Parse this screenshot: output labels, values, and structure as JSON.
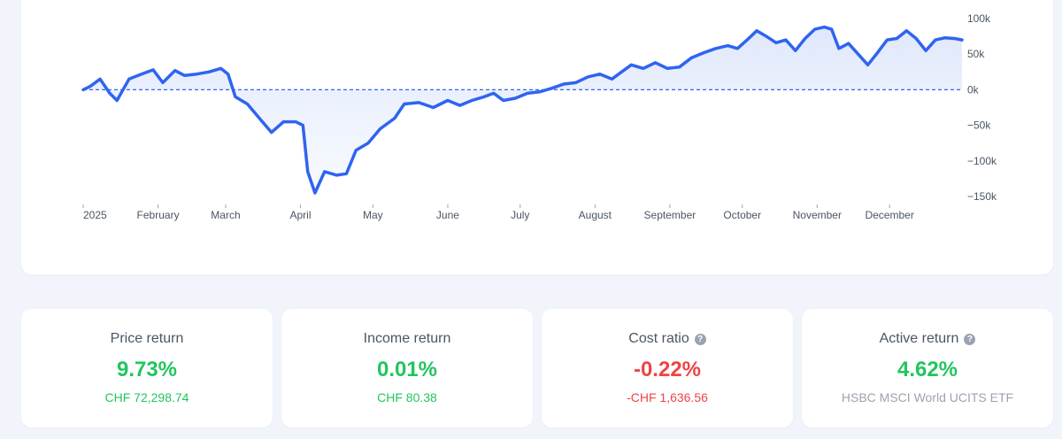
{
  "chart_data": {
    "type": "area",
    "x_ticks": [
      "2025",
      "February",
      "March",
      "April",
      "May",
      "June",
      "July",
      "August",
      "September",
      "October",
      "November",
      "December"
    ],
    "y_ticks": [
      "100k",
      "50k",
      "0k",
      "−50k",
      "−100k",
      "−150k"
    ],
    "ylim": [
      -150000,
      100000
    ],
    "baseline": 0,
    "series": [
      {
        "color": "#2f64f0",
        "points": [
          [
            "2025-01-01",
            0
          ],
          [
            "2025-01-04",
            5000
          ],
          [
            "2025-01-08",
            15000
          ],
          [
            "2025-01-12",
            -5000
          ],
          [
            "2025-01-15",
            -15000
          ],
          [
            "2025-01-20",
            15000
          ],
          [
            "2025-01-26",
            23000
          ],
          [
            "2025-01-30",
            28000
          ],
          [
            "2025-02-03",
            10000
          ],
          [
            "2025-02-08",
            27000
          ],
          [
            "2025-02-12",
            20000
          ],
          [
            "2025-02-17",
            22000
          ],
          [
            "2025-02-22",
            25000
          ],
          [
            "2025-02-27",
            30000
          ],
          [
            "2025-03-02",
            22000
          ],
          [
            "2025-03-05",
            -10000
          ],
          [
            "2025-03-10",
            -20000
          ],
          [
            "2025-03-15",
            -40000
          ],
          [
            "2025-03-20",
            -60000
          ],
          [
            "2025-03-25",
            -45000
          ],
          [
            "2025-03-30",
            -45000
          ],
          [
            "2025-04-02",
            -50000
          ],
          [
            "2025-04-04",
            -115000
          ],
          [
            "2025-04-07",
            -145000
          ],
          [
            "2025-04-11",
            -115000
          ],
          [
            "2025-04-16",
            -120000
          ],
          [
            "2025-04-20",
            -118000
          ],
          [
            "2025-04-24",
            -85000
          ],
          [
            "2025-04-29",
            -75000
          ],
          [
            "2025-05-04",
            -55000
          ],
          [
            "2025-05-10",
            -40000
          ],
          [
            "2025-05-14",
            -20000
          ],
          [
            "2025-05-20",
            -18000
          ],
          [
            "2025-05-26",
            -25000
          ],
          [
            "2025-06-01",
            -15000
          ],
          [
            "2025-06-06",
            -22000
          ],
          [
            "2025-06-11",
            -15000
          ],
          [
            "2025-06-16",
            -10000
          ],
          [
            "2025-06-20",
            -5000
          ],
          [
            "2025-06-24",
            -15000
          ],
          [
            "2025-06-29",
            -12000
          ],
          [
            "2025-07-04",
            -5000
          ],
          [
            "2025-07-09",
            -3000
          ],
          [
            "2025-07-14",
            2000
          ],
          [
            "2025-07-19",
            8000
          ],
          [
            "2025-07-24",
            10000
          ],
          [
            "2025-07-29",
            18000
          ],
          [
            "2025-08-03",
            22000
          ],
          [
            "2025-08-08",
            15000
          ],
          [
            "2025-08-12",
            25000
          ],
          [
            "2025-08-16",
            35000
          ],
          [
            "2025-08-21",
            30000
          ],
          [
            "2025-08-26",
            38000
          ],
          [
            "2025-08-31",
            30000
          ],
          [
            "2025-09-05",
            32000
          ],
          [
            "2025-09-10",
            45000
          ],
          [
            "2025-09-15",
            52000
          ],
          [
            "2025-09-20",
            58000
          ],
          [
            "2025-09-25",
            62000
          ],
          [
            "2025-09-29",
            58000
          ],
          [
            "2025-10-03",
            70000
          ],
          [
            "2025-10-07",
            83000
          ],
          [
            "2025-10-11",
            75000
          ],
          [
            "2025-10-15",
            66000
          ],
          [
            "2025-10-19",
            70000
          ],
          [
            "2025-10-23",
            55000
          ],
          [
            "2025-10-27",
            72000
          ],
          [
            "2025-10-31",
            85000
          ],
          [
            "2025-11-04",
            88000
          ],
          [
            "2025-11-07",
            85000
          ],
          [
            "2025-11-10",
            58000
          ],
          [
            "2025-11-14",
            65000
          ],
          [
            "2025-11-18",
            50000
          ],
          [
            "2025-11-22",
            35000
          ],
          [
            "2025-11-26",
            52000
          ],
          [
            "2025-11-30",
            70000
          ],
          [
            "2025-12-04",
            72000
          ],
          [
            "2025-12-08",
            83000
          ],
          [
            "2025-12-12",
            72000
          ],
          [
            "2025-12-16",
            55000
          ],
          [
            "2025-12-20",
            70000
          ],
          [
            "2025-12-24",
            73000
          ],
          [
            "2025-12-28",
            72000
          ],
          [
            "2025-12-31",
            70000
          ]
        ]
      }
    ]
  },
  "stats": [
    {
      "label": "Price return",
      "value": "9.73%",
      "sub": "CHF 72,298.74",
      "tone": "green",
      "help": false
    },
    {
      "label": "Income return",
      "value": "0.01%",
      "sub": "CHF 80.38",
      "tone": "green",
      "help": false
    },
    {
      "label": "Cost ratio",
      "value": "-0.22%",
      "sub": "-CHF 1,636.56",
      "tone": "red",
      "help": true
    },
    {
      "label": "Active return",
      "value": "4.62%",
      "sub": "HSBC MSCI World UCITS ETF",
      "tone": "green",
      "help": true,
      "sub_tone": "gray"
    }
  ],
  "help_glyph": "?",
  "colors": {
    "line": "#2f64f0",
    "fill": "#e8eefc",
    "positive": "#22c55e",
    "negative": "#ef4444",
    "muted": "#9ca3af"
  }
}
